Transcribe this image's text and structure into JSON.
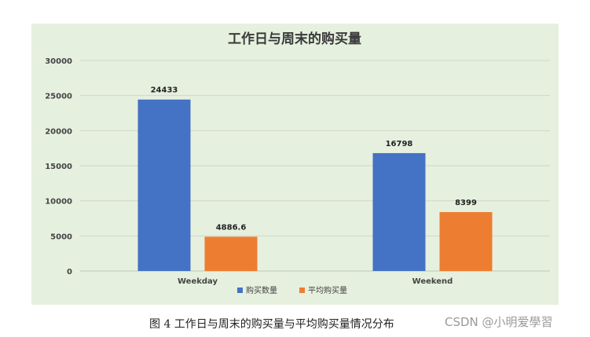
{
  "chart_data": {
    "type": "bar",
    "title": "工作日与周末的购买量",
    "categories": [
      "Weekday",
      "Weekend"
    ],
    "series": [
      {
        "name": "购买数量",
        "values": [
          24433,
          16798
        ],
        "labels": [
          "24433",
          "16798"
        ],
        "color": "#4472c4"
      },
      {
        "name": "平均购买量",
        "values": [
          4886.6,
          8399
        ],
        "labels": [
          "4886.6",
          "8399"
        ],
        "color": "#ed7d31"
      }
    ],
    "ylim": [
      0,
      30000
    ],
    "yticks": [
      "0",
      "5000",
      "10000",
      "15000",
      "20000",
      "25000",
      "30000"
    ],
    "grid": true,
    "legend": "bottom-center"
  },
  "caption": "图 4  工作日与周末的购买量与平均购买量情况分布",
  "watermark": "CSDN @小明爱學習",
  "colors": {
    "panel_background": "#e6f0df",
    "gridline": "#cfd8c8"
  }
}
